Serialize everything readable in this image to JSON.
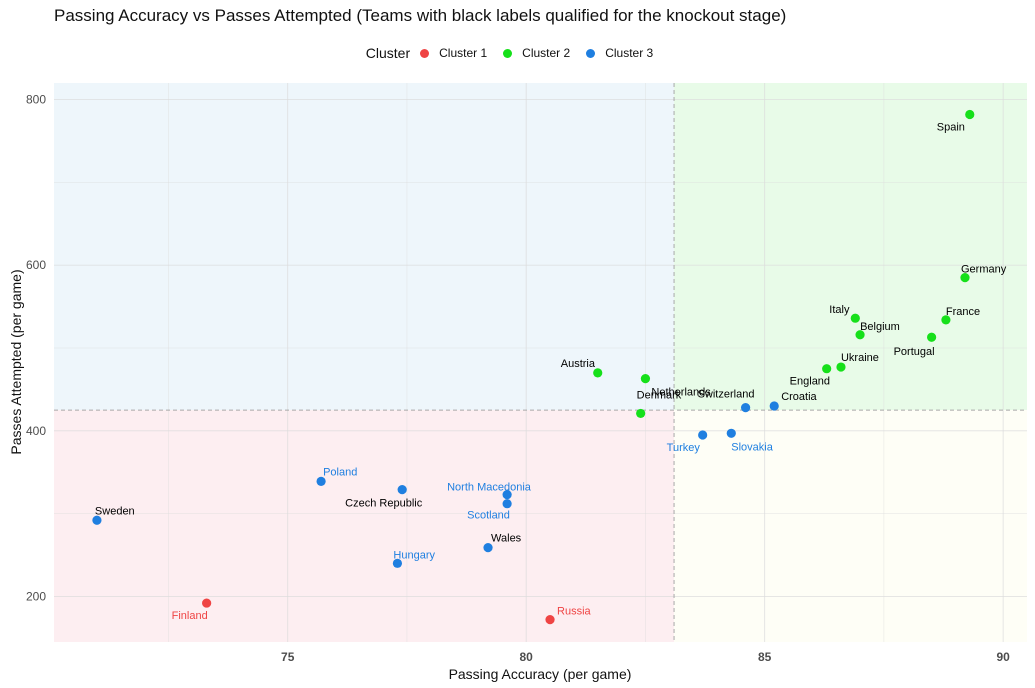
{
  "chart_data": {
    "type": "scatter",
    "title": "Passing Accuracy vs Passes Attempted (Teams with black labels qualified for the knockout stage)",
    "xlabel": "Passing Accuracy (per game)",
    "ylabel": "Passes Attempted (per game)",
    "xlim": [
      70.1,
      90.5
    ],
    "ylim": [
      145,
      820
    ],
    "x_ticks": [
      75,
      80,
      85,
      90
    ],
    "y_ticks": [
      200,
      400,
      600,
      800
    ],
    "threshold_x": 83.1,
    "threshold_y": 425,
    "grid": true,
    "legend": {
      "title": "Cluster",
      "position": "top",
      "entries": [
        {
          "name": "Cluster 1",
          "color": "#ef4444"
        },
        {
          "name": "Cluster 2",
          "color": "#16e01a"
        },
        {
          "name": "Cluster 3",
          "color": "#1f7fe0"
        }
      ]
    },
    "quadrant_colors": {
      "top_left": "#eef6fb",
      "top_right": "#e8fbe8",
      "bottom_left": "#fdeef1",
      "bottom_right": "#fefef6"
    },
    "points": [
      {
        "label": "Spain",
        "x": 89.3,
        "y": 782,
        "cluster": 2,
        "qualified": true
      },
      {
        "label": "Germany",
        "x": 89.2,
        "y": 585,
        "cluster": 2,
        "qualified": true
      },
      {
        "label": "France",
        "x": 88.8,
        "y": 534,
        "cluster": 2,
        "qualified": true
      },
      {
        "label": "Portugal",
        "x": 88.5,
        "y": 513,
        "cluster": 2,
        "qualified": true
      },
      {
        "label": "Italy",
        "x": 86.9,
        "y": 536,
        "cluster": 2,
        "qualified": true
      },
      {
        "label": "Belgium",
        "x": 87.0,
        "y": 516,
        "cluster": 2,
        "qualified": true
      },
      {
        "label": "Ukraine",
        "x": 86.6,
        "y": 477,
        "cluster": 2,
        "qualified": true
      },
      {
        "label": "England",
        "x": 86.3,
        "y": 475,
        "cluster": 2,
        "qualified": true
      },
      {
        "label": "Netherlands",
        "x": 82.5,
        "y": 463,
        "cluster": 2,
        "qualified": true
      },
      {
        "label": "Austria",
        "x": 81.5,
        "y": 470,
        "cluster": 2,
        "qualified": true
      },
      {
        "label": "Denmark",
        "x": 82.4,
        "y": 421,
        "cluster": 2,
        "qualified": true
      },
      {
        "label": "Croatia",
        "x": 85.2,
        "y": 430,
        "cluster": 3,
        "qualified": true
      },
      {
        "label": "Switzerland",
        "x": 84.6,
        "y": 428,
        "cluster": 3,
        "qualified": true
      },
      {
        "label": "Turkey",
        "x": 83.7,
        "y": 395,
        "cluster": 3,
        "qualified": false
      },
      {
        "label": "Slovakia",
        "x": 84.3,
        "y": 397,
        "cluster": 3,
        "qualified": false
      },
      {
        "label": "North Macedonia",
        "x": 79.6,
        "y": 323,
        "cluster": 3,
        "qualified": false
      },
      {
        "label": "Scotland",
        "x": 79.6,
        "y": 312,
        "cluster": 3,
        "qualified": false
      },
      {
        "label": "Czech Republic",
        "x": 77.4,
        "y": 329,
        "cluster": 3,
        "qualified": true
      },
      {
        "label": "Poland",
        "x": 75.7,
        "y": 339,
        "cluster": 3,
        "qualified": false
      },
      {
        "label": "Sweden",
        "x": 71.0,
        "y": 292,
        "cluster": 3,
        "qualified": true
      },
      {
        "label": "Wales",
        "x": 79.2,
        "y": 259,
        "cluster": 3,
        "qualified": true
      },
      {
        "label": "Hungary",
        "x": 77.3,
        "y": 240,
        "cluster": 3,
        "qualified": false
      },
      {
        "label": "Finland",
        "x": 73.3,
        "y": 192,
        "cluster": 1,
        "qualified": false
      },
      {
        "label": "Russia",
        "x": 80.5,
        "y": 172,
        "cluster": 1,
        "qualified": false
      }
    ]
  }
}
